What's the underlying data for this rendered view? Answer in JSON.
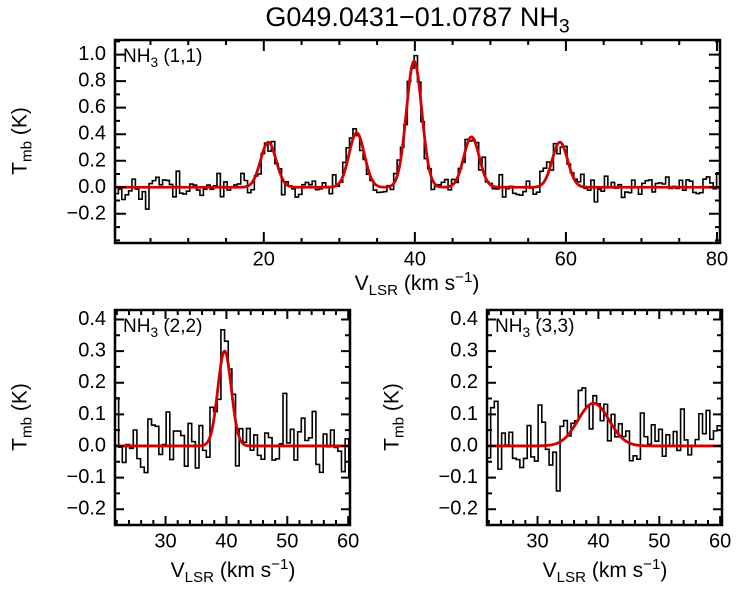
{
  "figure": {
    "title": {
      "base": "G049.0431−01.0787 NH",
      "sub": "3"
    },
    "background_color": "#ffffff"
  },
  "labels": {
    "x_axis": {
      "base": "V",
      "sub": "LSR",
      "mid": " (km s",
      "sup": "−1",
      "end": ")"
    },
    "y_axis": {
      "base": "T",
      "sub": "mb",
      "end": " (K)"
    }
  },
  "colors": {
    "spectrum": "#000000",
    "fit": "#d40000",
    "frame": "#000000",
    "text": "#000000"
  },
  "chart_data": [
    {
      "type": "line",
      "title": "NH3 (1,1)",
      "panel_label": {
        "base": "NH",
        "sub": "3",
        "end": " (1,1)"
      },
      "xlabel": "V_LSR (km s^-1)",
      "ylabel": "T_mb (K)",
      "xlim": [
        0.3,
        80.4
      ],
      "ylim": [
        -0.42,
        1.11
      ],
      "xticks": [
        20,
        40,
        60,
        80
      ],
      "yticks": [
        -0.2,
        0.0,
        0.2,
        0.4,
        0.6,
        0.8,
        1.0
      ],
      "ytick_decimals": 1,
      "x_minor_step": 5,
      "y_minor_step": 0.1,
      "grid": false,
      "legend": null,
      "channel_width_kms": 0.45,
      "noise_sigma_K": 0.05,
      "seed": 42,
      "fit_components": [
        {
          "center_kms": 20.6,
          "peak_K": 0.34,
          "fwhm_kms": 2.4
        },
        {
          "center_kms": 32.3,
          "peak_K": 0.41,
          "fwhm_kms": 2.4
        },
        {
          "center_kms": 39.9,
          "peak_K": 0.95,
          "fwhm_kms": 2.4
        },
        {
          "center_kms": 47.5,
          "peak_K": 0.38,
          "fwhm_kms": 2.4
        },
        {
          "center_kms": 59.2,
          "peak_K": 0.34,
          "fwhm_kms": 2.4
        }
      ]
    },
    {
      "type": "line",
      "title": "NH3 (2,2)",
      "panel_label": {
        "base": "NH",
        "sub": "3",
        "end": " (2,2)"
      },
      "xlabel": "V_LSR (km s^-1)",
      "ylabel": "T_mb (K)",
      "xlim": [
        21.7,
        60.3
      ],
      "ylim": [
        -0.25,
        0.43
      ],
      "xticks": [
        30,
        40,
        50,
        60
      ],
      "yticks": [
        -0.2,
        -0.1,
        0.0,
        0.1,
        0.2,
        0.3,
        0.4
      ],
      "ytick_decimals": 1,
      "x_minor_step": 2,
      "y_minor_step": 0.05,
      "grid": false,
      "legend": null,
      "channel_width_kms": 0.6,
      "noise_sigma_K": 0.055,
      "seed": 7,
      "fit_components": [
        {
          "center_kms": 39.7,
          "peak_K": 0.3,
          "fwhm_kms": 2.6
        }
      ]
    },
    {
      "type": "line",
      "title": "NH3 (3,3)",
      "panel_label": {
        "base": "NH",
        "sub": "3",
        "end": " (3,3)"
      },
      "xlabel": "V_LSR (km s^-1)",
      "ylabel": "T_mb (K)",
      "xlim": [
        21.7,
        60.3
      ],
      "ylim": [
        -0.25,
        0.43
      ],
      "xticks": [
        30,
        40,
        50,
        60
      ],
      "yticks": [
        -0.2,
        -0.1,
        0.0,
        0.1,
        0.2,
        0.3,
        0.4
      ],
      "ytick_decimals": 1,
      "x_minor_step": 2,
      "y_minor_step": 0.05,
      "grid": false,
      "legend": null,
      "channel_width_kms": 0.6,
      "noise_sigma_K": 0.055,
      "seed": 13,
      "fit_components": [
        {
          "center_kms": 39.2,
          "peak_K": 0.135,
          "fwhm_kms": 6.0
        }
      ]
    }
  ]
}
